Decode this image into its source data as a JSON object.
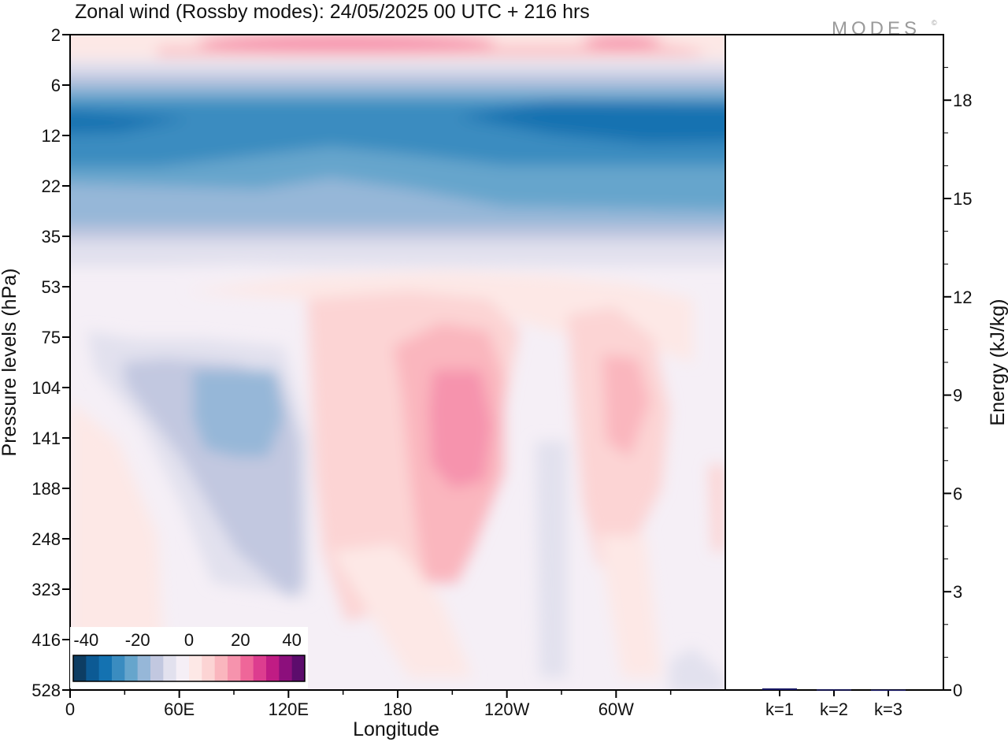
{
  "title": "Zonal wind (Rossby modes):  24/05/2025  00 UTC  + 216 hrs",
  "brand": "MODES",
  "brand_mark": "©",
  "chart_data": [
    {
      "type": "heatmap",
      "title": "Zonal wind (Rossby modes):  24/05/2025  00 UTC  + 216 hrs",
      "xlabel": "Longitude",
      "ylabel": "Pressure levels (hPa)",
      "x_ticks": [
        "0",
        "60E",
        "120E",
        "180",
        "120W",
        "60W"
      ],
      "x_range_deg": [
        0,
        360
      ],
      "y_ticks": [
        "2",
        "6",
        "12",
        "22",
        "35",
        "53",
        "75",
        "104",
        "141",
        "188",
        "248",
        "323",
        "416",
        "528"
      ],
      "colorbar": {
        "ticks": [
          "-40",
          "-20",
          "0",
          "20",
          "40"
        ],
        "range": [
          -45,
          45
        ],
        "step": 5,
        "colors": [
          "#0d3d63",
          "#0c5a94",
          "#1472b1",
          "#3a8cc0",
          "#66a5cc",
          "#96b7d8",
          "#c2c8e0",
          "#e2e1ee",
          "#f5eff6",
          "#fde8e6",
          "#fcd4d4",
          "#fab6be",
          "#f693ad",
          "#ef6699",
          "#dd3d8f",
          "#c01c84",
          "#8c0f7c",
          "#5c0c6c"
        ]
      }
    },
    {
      "type": "bar",
      "categories": [
        "k=1",
        "k=2",
        "k=3"
      ],
      "values": [
        0.05,
        0.02,
        0.01
      ],
      "ylabel": "Energy (kJ/kg)",
      "ylim": [
        0,
        20
      ],
      "y_ticks": [
        "0",
        "3",
        "6",
        "9",
        "12",
        "15",
        "18"
      ]
    }
  ]
}
